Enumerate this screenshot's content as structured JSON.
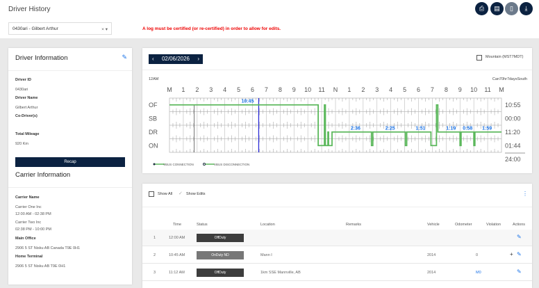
{
  "header": {
    "title": "Driver History",
    "driver_select": "0430ari - Gilbert Arthur",
    "clear": "×",
    "caret": "▾",
    "warning": "A log must be certified (or re-certified) in order to allow for edits.",
    "toolbar": [
      {
        "icon": "print-icon",
        "glyph": "⎙"
      },
      {
        "icon": "documents-icon",
        "glyph": "▤"
      },
      {
        "icon": "file-icon",
        "glyph": "▯"
      },
      {
        "icon": "download-icon",
        "glyph": "⤓"
      }
    ]
  },
  "driver": {
    "title": "Driver Information",
    "driver_id_label": "Driver ID",
    "driver_id": "0430ari",
    "driver_name_label": "Driver Name",
    "driver_name": "Gilbert Arthur",
    "codriver_label": "Co-Driver(s)",
    "mileage_label": "Total Mileage",
    "mileage": "920 Km",
    "recap": "Recap"
  },
  "carrier": {
    "title": "Carrier Information",
    "name_label": "Carrier Name",
    "carrier1": "Carrier One Inc",
    "carrier1_time": "12:00 AM - 02:38 PM",
    "carrier2": "Carrier Two Inc",
    "carrier2_time": "02:38 PM - 10:00 PM",
    "main_office_label": "Main Office",
    "main_office": "2906 5 ST Nisku AB Canada T9E 0H1",
    "home_terminal_label": "Home Terminal",
    "home_terminal": "2906 5 ST Nisku AB T9E 0H1"
  },
  "graph": {
    "date": "02/06/2026",
    "prev": "‹",
    "next": "›",
    "timezone": "Mountain (MST7MDT)",
    "start_label": "12AM",
    "ruleset": "Can70hr7daysSouth",
    "hours": [
      "M",
      "1",
      "2",
      "3",
      "4",
      "5",
      "6",
      "7",
      "8",
      "9",
      "10",
      "11",
      "N",
      "1",
      "2",
      "3",
      "4",
      "5",
      "6",
      "7",
      "8",
      "9",
      "10",
      "11",
      "M"
    ],
    "rows": [
      "OF",
      "SB",
      "DR",
      "ON"
    ],
    "totals": [
      "10:55",
      "00:00",
      "11:20",
      "01:44"
    ],
    "total": "24:00",
    "events": [
      [
        0,
        "OF"
      ],
      [
        10.75,
        "ON"
      ],
      [
        11.2,
        "OF"
      ],
      [
        11.27,
        "ON"
      ],
      [
        11.45,
        "DR"
      ],
      [
        11.5,
        "ON"
      ],
      [
        11.75,
        "DR"
      ],
      [
        11.95,
        "DR"
      ],
      [
        14.6,
        "ON"
      ],
      [
        14.7,
        "DR"
      ],
      [
        17.05,
        "ON"
      ],
      [
        17.15,
        "DR"
      ],
      [
        18.9,
        "ON"
      ],
      [
        19.3,
        "OF"
      ],
      [
        19.4,
        "DR"
      ],
      [
        21.0,
        "ON"
      ],
      [
        21.08,
        "DR"
      ],
      [
        22.0,
        "ON"
      ],
      [
        22.08,
        "DR"
      ],
      [
        24,
        "DR"
      ]
    ],
    "current_time": 6.45,
    "marker_time": 1.78,
    "labels": [
      {
        "t": "10:45",
        "h": 5.2,
        "row": 0
      },
      {
        "t": "2:36",
        "h": 13.1,
        "row": 2
      },
      {
        "t": "2:25",
        "h": 15.6,
        "row": 2
      },
      {
        "t": "1:51",
        "h": 17.8,
        "row": 2
      },
      {
        "t": "1:19",
        "h": 20.0,
        "row": 2
      },
      {
        "t": "0:58",
        "h": 21.2,
        "row": 2
      },
      {
        "t": "1:59",
        "h": 22.6,
        "row": 2
      }
    ],
    "legend": [
      "VBUS CONNECTION",
      "VBUS DISCONNECTION"
    ],
    "line_color": "#5cb85c",
    "label_color": "#1a73e8"
  },
  "log": {
    "show_all": "Show All",
    "show_edits": "Show Edits",
    "menu": "⋮",
    "columns": [
      "Time",
      "Status",
      "Location",
      "Remarks",
      "Vehicle",
      "Odometer",
      "Violation",
      "Actions"
    ],
    "rows": [
      {
        "n": "1",
        "time": "12:00 AM",
        "status": "OffDuty",
        "color": "#3d3d3d",
        "location": "",
        "vehicle": "",
        "odometer": "",
        "add": ""
      },
      {
        "n": "2",
        "time": "10:45 AM",
        "status": "OnDuty ND",
        "color": "#777777",
        "location": "Mann I",
        "vehicle": "2014",
        "odometer": "0",
        "add": "+"
      },
      {
        "n": "3",
        "time": "11:12 AM",
        "status": "OffDuty",
        "color": "#3d3d3d",
        "location": "1km SSE Mannville, AB",
        "vehicle": "2014",
        "odometer": "M0",
        "add": ""
      }
    ]
  }
}
